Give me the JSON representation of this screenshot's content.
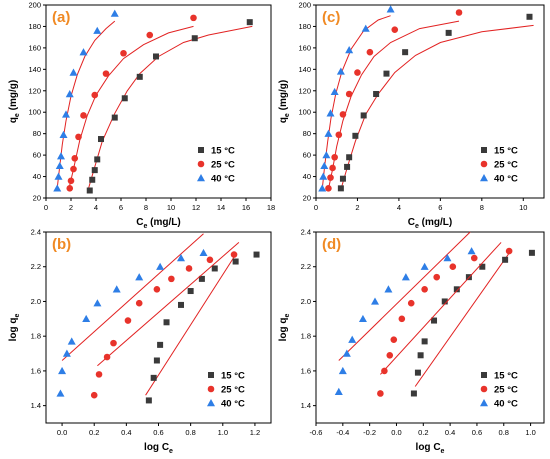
{
  "chart_data": [
    {
      "type": "scatter",
      "panel_label": "(a)",
      "xlabel": {
        "main": "C",
        "sub": "e",
        "tail": " (mg/L)"
      },
      "ylabel": {
        "main": "q",
        "sub": "e",
        "tail": " (mg/g)"
      },
      "xlim": [
        0,
        18
      ],
      "ylim": [
        20,
        200
      ],
      "xticks": [
        "0",
        "2",
        "4",
        "6",
        "8",
        "10",
        "12",
        "14",
        "16",
        "18"
      ],
      "yticks": [
        "20",
        "40",
        "60",
        "80",
        "100",
        "120",
        "140",
        "160",
        "180",
        "200"
      ],
      "grid": false,
      "legend_position": "bottom-right",
      "fit_lines": true,
      "series": [
        {
          "name": "15 °C",
          "marker": "square",
          "color": "#3a3a3a",
          "points": [
            [
              3.5,
              27
            ],
            [
              3.7,
              37
            ],
            [
              3.9,
              46
            ],
            [
              4.1,
              56
            ],
            [
              4.4,
              75
            ],
            [
              5.5,
              95
            ],
            [
              6.3,
              113
            ],
            [
              7.5,
              133
            ],
            [
              8.8,
              152
            ],
            [
              11.9,
              169
            ],
            [
              16.3,
              184
            ]
          ],
          "fit": [
            [
              3.3,
              25
            ],
            [
              3.8,
              45
            ],
            [
              4.5,
              73
            ],
            [
              5.5,
              99
            ],
            [
              6.5,
              120
            ],
            [
              7.5,
              136
            ],
            [
              9,
              152
            ],
            [
              11,
              165
            ],
            [
              13,
              172
            ],
            [
              16.5,
              180
            ]
          ]
        },
        {
          "name": "25 °C",
          "marker": "circle",
          "color": "#e8332b",
          "points": [
            [
              1.9,
              29
            ],
            [
              2.0,
              36
            ],
            [
              2.2,
              47
            ],
            [
              2.3,
              57
            ],
            [
              2.6,
              77
            ],
            [
              3.0,
              97
            ],
            [
              3.9,
              116
            ],
            [
              4.8,
              136
            ],
            [
              6.2,
              155
            ],
            [
              8.3,
              172
            ],
            [
              11.8,
              188
            ]
          ],
          "fit": [
            [
              1.8,
              27
            ],
            [
              2.2,
              47
            ],
            [
              2.7,
              74
            ],
            [
              3.3,
              97
            ],
            [
              4,
              116
            ],
            [
              5,
              134
            ],
            [
              6.2,
              150
            ],
            [
              7.8,
              163
            ],
            [
              9.8,
              174
            ],
            [
              11.8,
              180
            ]
          ]
        },
        {
          "name": "40 °C",
          "marker": "triangle",
          "color": "#2e7ee6",
          "points": [
            [
              0.9,
              29
            ],
            [
              1.0,
              40
            ],
            [
              1.1,
              50
            ],
            [
              1.2,
              59
            ],
            [
              1.4,
              79
            ],
            [
              1.6,
              98
            ],
            [
              1.9,
              117
            ],
            [
              2.2,
              137
            ],
            [
              3.0,
              156
            ],
            [
              4.1,
              176
            ],
            [
              5.5,
              192
            ]
          ],
          "fit": [
            [
              0.9,
              30
            ],
            [
              1.1,
              50
            ],
            [
              1.3,
              70
            ],
            [
              1.6,
              92
            ],
            [
              2,
              115
            ],
            [
              2.5,
              135
            ],
            [
              3.1,
              152
            ],
            [
              3.9,
              167
            ],
            [
              4.8,
              178
            ],
            [
              5.5,
              185
            ]
          ]
        }
      ]
    },
    {
      "type": "scatter",
      "panel_label": "(c)",
      "xlabel": {
        "main": "C",
        "sub": "e",
        "tail": " (mg/L)"
      },
      "ylabel": {
        "main": "q",
        "sub": "e",
        "tail": " (mg/g)"
      },
      "xlim": [
        0,
        11
      ],
      "ylim": [
        20,
        200
      ],
      "xticks": [
        "0",
        "2",
        "4",
        "6",
        "8",
        "10"
      ],
      "yticks": [
        "20",
        "40",
        "60",
        "80",
        "100",
        "120",
        "140",
        "160",
        "180",
        "200"
      ],
      "grid": false,
      "legend_position": "bottom-right",
      "fit_lines": true,
      "series": [
        {
          "name": "15 °C",
          "marker": "square",
          "color": "#3a3a3a",
          "points": [
            [
              1.2,
              29
            ],
            [
              1.3,
              38
            ],
            [
              1.5,
              49
            ],
            [
              1.6,
              58
            ],
            [
              1.9,
              78
            ],
            [
              2.3,
              97
            ],
            [
              2.9,
              117
            ],
            [
              3.4,
              136
            ],
            [
              4.3,
              156
            ],
            [
              6.4,
              174
            ],
            [
              10.3,
              189
            ]
          ],
          "fit": [
            [
              1.2,
              28
            ],
            [
              1.5,
              48
            ],
            [
              1.9,
              73
            ],
            [
              2.4,
              98
            ],
            [
              3,
              117
            ],
            [
              3.8,
              137
            ],
            [
              4.8,
              153
            ],
            [
              6,
              165
            ],
            [
              8,
              175
            ],
            [
              10.5,
              181
            ]
          ]
        },
        {
          "name": "25 °C",
          "marker": "circle",
          "color": "#e8332b",
          "points": [
            [
              0.6,
              29
            ],
            [
              0.7,
              39
            ],
            [
              0.8,
              48
            ],
            [
              0.9,
              58
            ],
            [
              1.1,
              79
            ],
            [
              1.3,
              98
            ],
            [
              1.6,
              117
            ],
            [
              2.0,
              137
            ],
            [
              2.6,
              156
            ],
            [
              3.8,
              177
            ],
            [
              6.9,
              193
            ]
          ],
          "fit": [
            [
              0.6,
              28
            ],
            [
              0.8,
              47
            ],
            [
              1,
              68
            ],
            [
              1.3,
              92
            ],
            [
              1.7,
              115
            ],
            [
              2.2,
              135
            ],
            [
              2.8,
              152
            ],
            [
              3.6,
              165
            ],
            [
              5,
              178
            ],
            [
              6.9,
              185
            ]
          ]
        },
        {
          "name": "40 °C",
          "marker": "triangle",
          "color": "#2e7ee6",
          "points": [
            [
              0.3,
              29
            ],
            [
              0.35,
              40
            ],
            [
              0.4,
              50
            ],
            [
              0.5,
              60
            ],
            [
              0.6,
              80
            ],
            [
              0.7,
              99
            ],
            [
              0.9,
              119
            ],
            [
              1.2,
              138
            ],
            [
              1.6,
              158
            ],
            [
              2.4,
              178
            ],
            [
              3.6,
              196
            ]
          ],
          "fit": [
            [
              0.3,
              28
            ],
            [
              0.42,
              50
            ],
            [
              0.56,
              72
            ],
            [
              0.72,
              94
            ],
            [
              0.95,
              117
            ],
            [
              1.25,
              138
            ],
            [
              1.7,
              159
            ],
            [
              2.3,
              176
            ],
            [
              3,
              186
            ],
            [
              3.6,
              190
            ]
          ]
        }
      ]
    },
    {
      "type": "scatter",
      "panel_label": "(b)",
      "xlabel": {
        "main": "log C",
        "sub": "e",
        "tail": ""
      },
      "ylabel": {
        "main": "log q",
        "sub": "e",
        "tail": ""
      },
      "xlim": [
        -0.1,
        1.3
      ],
      "ylim": [
        1.3,
        2.4
      ],
      "xticks": [
        "0.0",
        "0.2",
        "0.4",
        "0.6",
        "0.8",
        "1.0",
        "1.2"
      ],
      "yticks": [
        "1.4",
        "1.6",
        "1.8",
        "2.0",
        "2.2",
        "2.4"
      ],
      "grid": false,
      "legend_position": "bottom-right",
      "fit_lines": true,
      "series": [
        {
          "name": "15 °C",
          "marker": "square",
          "color": "#3a3a3a",
          "points": [
            [
              0.54,
              1.43
            ],
            [
              0.57,
              1.56
            ],
            [
              0.59,
              1.66
            ],
            [
              0.61,
              1.75
            ],
            [
              0.65,
              1.88
            ],
            [
              0.74,
              1.98
            ],
            [
              0.8,
              2.06
            ],
            [
              0.87,
              2.13
            ],
            [
              0.95,
              2.19
            ],
            [
              1.08,
              2.23
            ],
            [
              1.21,
              2.27
            ]
          ],
          "fit": [
            [
              0.52,
              1.46
            ],
            [
              1.08,
              2.27
            ]
          ]
        },
        {
          "name": "25 °C",
          "marker": "circle",
          "color": "#e8332b",
          "points": [
            [
              0.2,
              1.46
            ],
            [
              0.23,
              1.58
            ],
            [
              0.28,
              1.68
            ],
            [
              0.32,
              1.76
            ],
            [
              0.41,
              1.89
            ],
            [
              0.48,
              1.99
            ],
            [
              0.59,
              2.07
            ],
            [
              0.68,
              2.13
            ],
            [
              0.79,
              2.19
            ],
            [
              0.92,
              2.24
            ],
            [
              1.07,
              2.27
            ]
          ],
          "fit": [
            [
              0.22,
              1.63
            ],
            [
              1.1,
              2.34
            ]
          ]
        },
        {
          "name": "40 °C",
          "marker": "triangle",
          "color": "#2e7ee6",
          "points": [
            [
              -0.01,
              1.47
            ],
            [
              0.0,
              1.6
            ],
            [
              0.03,
              1.7
            ],
            [
              0.06,
              1.77
            ],
            [
              0.15,
              1.9
            ],
            [
              0.22,
              1.99
            ],
            [
              0.34,
              2.07
            ],
            [
              0.48,
              2.14
            ],
            [
              0.61,
              2.2
            ],
            [
              0.74,
              2.25
            ],
            [
              0.88,
              2.28
            ]
          ],
          "fit": [
            [
              0,
              1.66
            ],
            [
              0.88,
              2.39
            ]
          ]
        }
      ]
    },
    {
      "type": "scatter",
      "panel_label": "(d)",
      "xlabel": {
        "main": "log C",
        "sub": "e",
        "tail": ""
      },
      "ylabel": {
        "main": "log q",
        "sub": "e",
        "tail": ""
      },
      "xlim": [
        -0.6,
        1.1
      ],
      "ylim": [
        1.3,
        2.4
      ],
      "xticks": [
        "-0.6",
        "-0.4",
        "-0.2",
        "0.0",
        "0.2",
        "0.4",
        "0.6",
        "0.8",
        "1.0"
      ],
      "yticks": [
        "1.4",
        "1.6",
        "1.8",
        "2.0",
        "2.2",
        "2.4"
      ],
      "grid": false,
      "legend_position": "bottom-right",
      "fit_lines": true,
      "series": [
        {
          "name": "15 °C",
          "marker": "square",
          "color": "#3a3a3a",
          "points": [
            [
              0.13,
              1.47
            ],
            [
              0.16,
              1.59
            ],
            [
              0.18,
              1.69
            ],
            [
              0.21,
              1.77
            ],
            [
              0.28,
              1.89
            ],
            [
              0.36,
              2.0
            ],
            [
              0.45,
              2.07
            ],
            [
              0.54,
              2.14
            ],
            [
              0.64,
              2.2
            ],
            [
              0.81,
              2.24
            ],
            [
              1.01,
              2.28
            ]
          ],
          "fit": [
            [
              0.14,
              1.51
            ],
            [
              0.86,
              2.3
            ]
          ]
        },
        {
          "name": "25 °C",
          "marker": "circle",
          "color": "#e8332b",
          "points": [
            [
              -0.12,
              1.47
            ],
            [
              -0.09,
              1.6
            ],
            [
              -0.05,
              1.69
            ],
            [
              -0.02,
              1.78
            ],
            [
              0.04,
              1.9
            ],
            [
              0.11,
              1.99
            ],
            [
              0.21,
              2.07
            ],
            [
              0.3,
              2.14
            ],
            [
              0.42,
              2.2
            ],
            [
              0.58,
              2.25
            ],
            [
              0.84,
              2.29
            ]
          ],
          "fit": [
            [
              -0.12,
              1.58
            ],
            [
              0.78,
              2.34
            ]
          ]
        },
        {
          "name": "40 °C",
          "marker": "triangle",
          "color": "#2e7ee6",
          "points": [
            [
              -0.43,
              1.48
            ],
            [
              -0.4,
              1.6
            ],
            [
              -0.37,
              1.7
            ],
            [
              -0.33,
              1.78
            ],
            [
              -0.25,
              1.9
            ],
            [
              -0.16,
              2.0
            ],
            [
              -0.06,
              2.07
            ],
            [
              0.07,
              2.14
            ],
            [
              0.21,
              2.2
            ],
            [
              0.38,
              2.25
            ],
            [
              0.56,
              2.29
            ]
          ],
          "fit": [
            [
              -0.43,
              1.66
            ],
            [
              0.55,
              2.4
            ]
          ]
        }
      ]
    }
  ]
}
